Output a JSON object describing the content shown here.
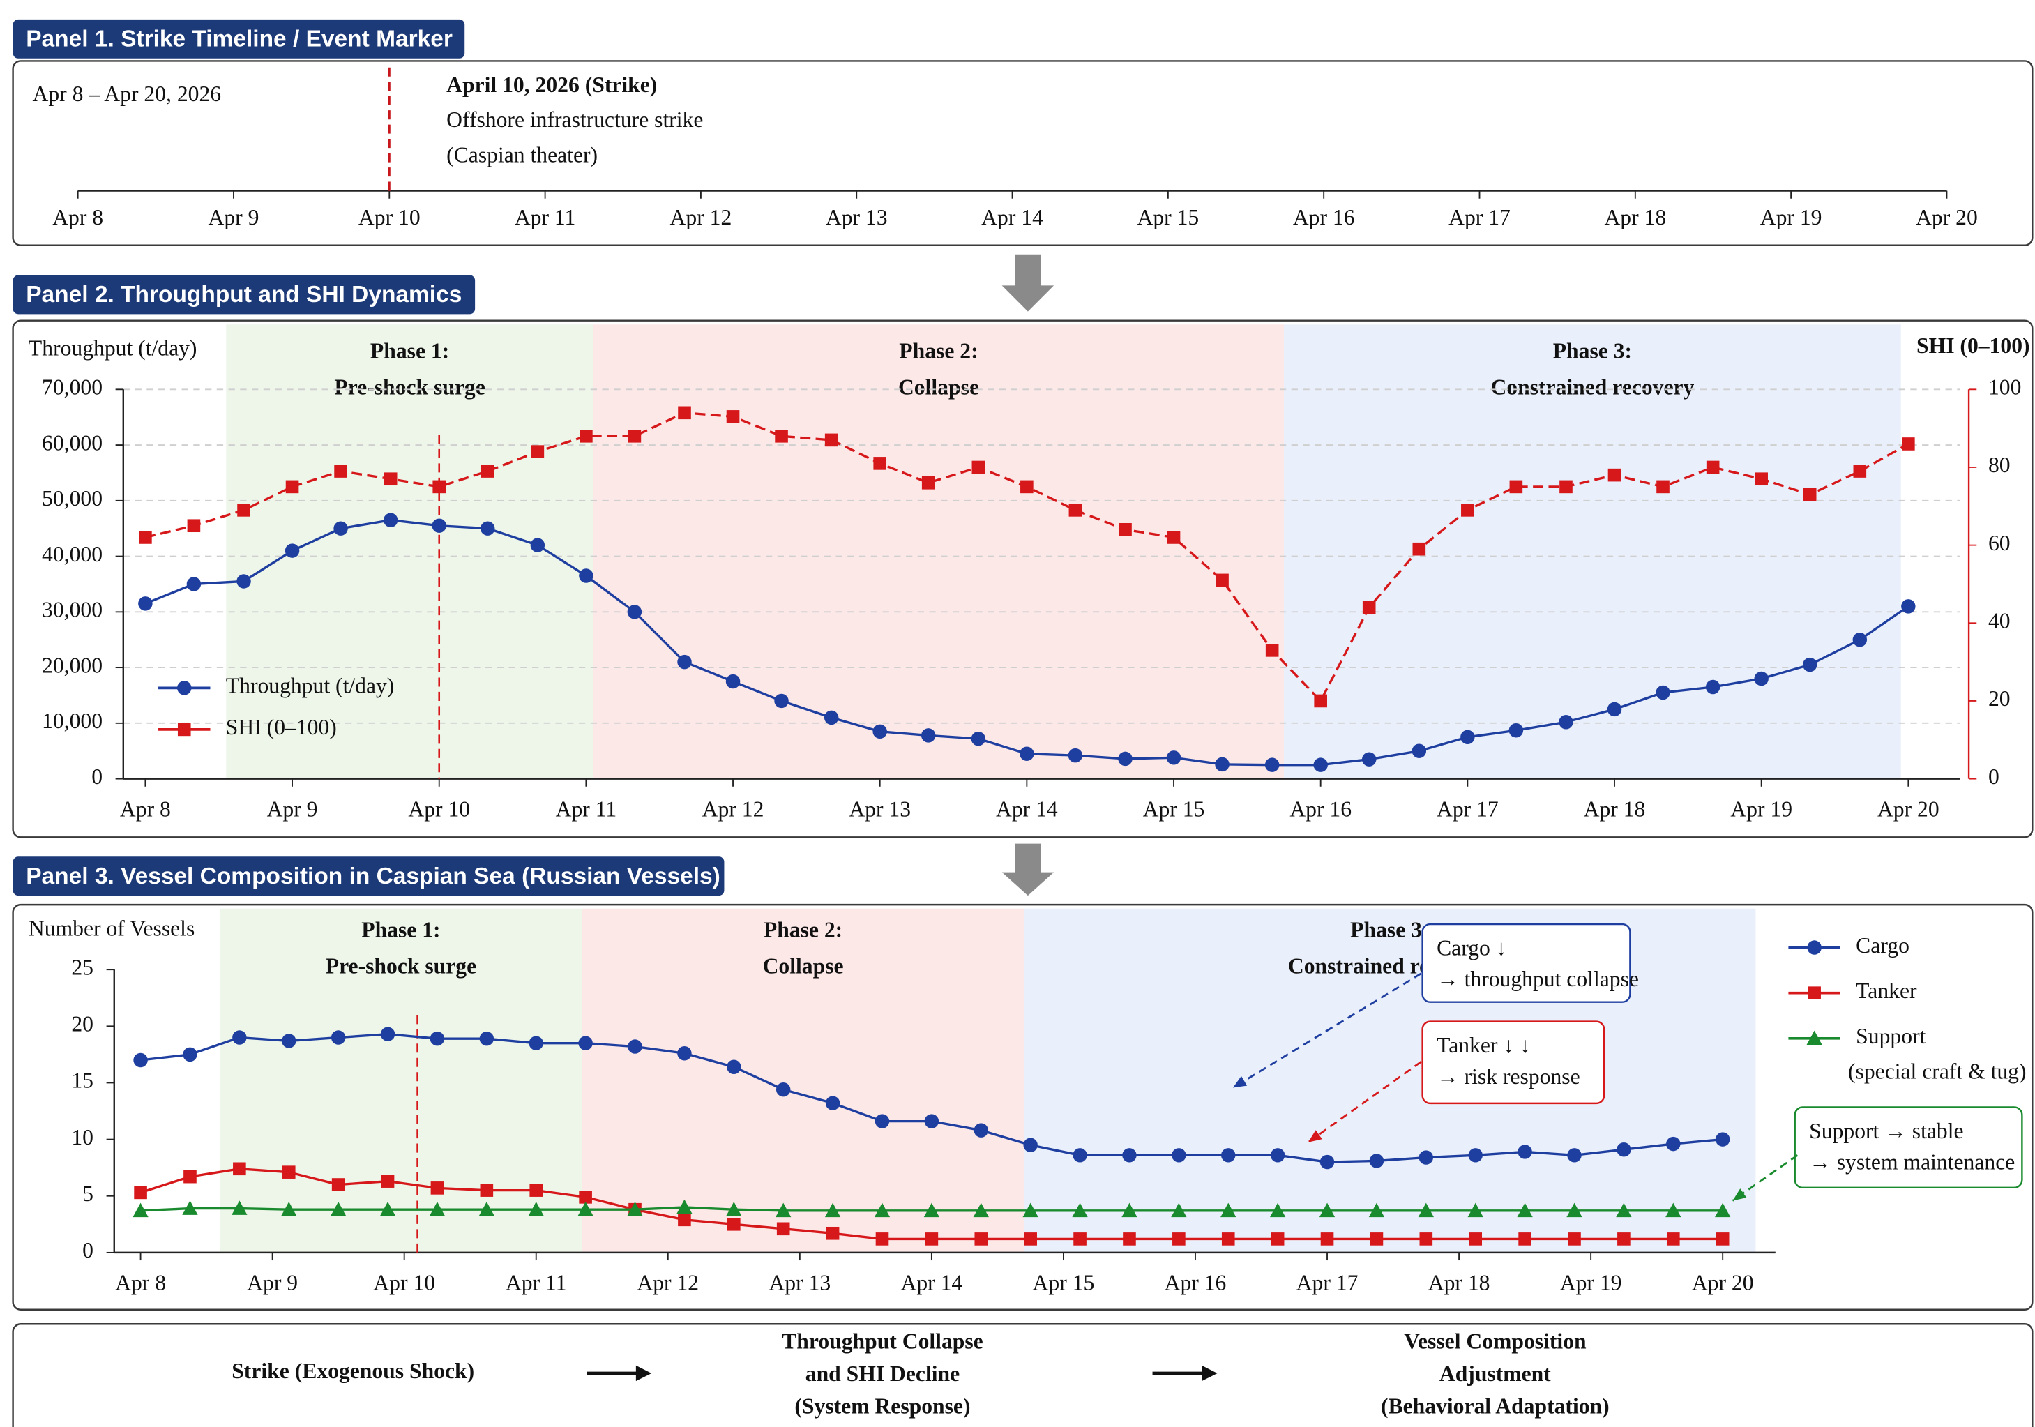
{
  "chart_data": [
    {
      "type": "timeline",
      "title": "Panel 1. Strike Timeline / Event Marker",
      "range_label": "Apr 8 – Apr 20, 2026",
      "event": {
        "x": 2,
        "title": "April 10, 2026 (Strike)",
        "lines": [
          "Offshore infrastructure strike",
          "(Caspian theater)"
        ],
        "color": "#c8161d"
      },
      "xlim": [
        0,
        12
      ],
      "xticks": [
        {
          "value": 0,
          "label": "Apr 8"
        },
        {
          "value": 1,
          "label": "Apr 9"
        },
        {
          "value": 2,
          "label": "Apr 10"
        },
        {
          "value": 3,
          "label": "Apr 11"
        },
        {
          "value": 4,
          "label": "Apr 12"
        },
        {
          "value": 5,
          "label": "Apr 13"
        },
        {
          "value": 6,
          "label": "Apr 14"
        },
        {
          "value": 7,
          "label": "Apr 15"
        },
        {
          "value": 8,
          "label": "Apr 16"
        },
        {
          "value": 9,
          "label": "Apr 17"
        },
        {
          "value": 10,
          "label": "Apr 18"
        },
        {
          "value": 11,
          "label": "Apr 19"
        },
        {
          "value": 12,
          "label": "Apr 20"
        }
      ]
    },
    {
      "type": "line",
      "title": "Panel 2. Throughput and SHI Dynamics",
      "ylabel": "Throughput (t/day)",
      "y2label": "SHI (0–100)",
      "legend": "lower left",
      "grid": true,
      "event_x": 2,
      "event_color": "#d6181b",
      "phases": [
        {
          "label": [
            "Phase 1:",
            "Pre-shock surge"
          ],
          "start": 0.55,
          "end": 3.05,
          "color": "#1c7a22",
          "fill": "#eef6ea"
        },
        {
          "label": [
            "Phase 2:",
            "Collapse"
          ],
          "start": 3.05,
          "end": 7.75,
          "color": "#d6181b",
          "fill": "#fde8e8"
        },
        {
          "label": [
            "Phase 3:",
            "Constrained recovery"
          ],
          "start": 7.75,
          "end": 11.95,
          "color": "#1f3a8f",
          "fill": "#eaf0fb"
        }
      ],
      "x": [
        0,
        0.33,
        0.67,
        1,
        1.33,
        1.67,
        2,
        2.33,
        2.67,
        3,
        3.33,
        3.67,
        4,
        4.33,
        4.67,
        5,
        5.33,
        5.67,
        6,
        6.33,
        6.67,
        7,
        7.33,
        7.67,
        8,
        8.33,
        8.67,
        9,
        9.33,
        9.67,
        10,
        10.33,
        10.67,
        11,
        11.33,
        11.67,
        12
      ],
      "series": [
        {
          "name": "Throughput (t/day)",
          "color": "#1f3fa0",
          "marker": "circle",
          "values": [
            31500,
            35000,
            35500,
            41000,
            45000,
            46500,
            45500,
            45000,
            42000,
            36500,
            30000,
            21000,
            17500,
            14000,
            11000,
            8500,
            7800,
            7200,
            4500,
            4200,
            3600,
            3800,
            2600,
            2500,
            2500,
            3500,
            5000,
            7500,
            8700,
            10200,
            12500,
            15500,
            16500,
            18000,
            20500,
            25000,
            31000
          ]
        },
        {
          "name": "SHI (0–100)",
          "color": "#d6181b",
          "marker": "square",
          "axis": "y2",
          "dashed": true,
          "values": [
            62,
            65,
            69,
            75,
            79,
            77,
            75,
            79,
            84,
            88,
            88,
            94,
            93,
            88,
            87,
            81,
            76,
            80,
            75,
            69,
            64,
            62,
            51,
            33,
            20,
            44,
            59,
            69,
            75,
            75,
            78,
            75,
            80,
            77,
            73,
            79,
            86
          ]
        }
      ],
      "xlim": [
        -0.15,
        12.35
      ],
      "xticks": [
        {
          "value": 0,
          "label": "Apr 8"
        },
        {
          "value": 1,
          "label": "Apr 9"
        },
        {
          "value": 2,
          "label": "Apr 10"
        },
        {
          "value": 3,
          "label": "Apr 11"
        },
        {
          "value": 4,
          "label": "Apr 12"
        },
        {
          "value": 5,
          "label": "Apr 13"
        },
        {
          "value": 6,
          "label": "Apr 14"
        },
        {
          "value": 7,
          "label": "Apr 15"
        },
        {
          "value": 8,
          "label": "Apr 16"
        },
        {
          "value": 9,
          "label": "Apr 17"
        },
        {
          "value": 10,
          "label": "Apr 18"
        },
        {
          "value": 11,
          "label": "Apr 19"
        },
        {
          "value": 12,
          "label": "Apr 20"
        }
      ],
      "ylim": [
        0,
        70000
      ],
      "yticks": [
        0,
        {
          "value": 10000,
          "label": "10,000"
        },
        {
          "value": 20000,
          "label": "20,000"
        },
        {
          "value": 30000,
          "label": "30,000"
        },
        {
          "value": 40000,
          "label": "40,000"
        },
        {
          "value": 50000,
          "label": "50,000"
        },
        {
          "value": 60000,
          "label": "60,000"
        },
        {
          "value": 70000,
          "label": "70,000"
        }
      ],
      "y2lim": [
        0,
        100
      ],
      "y2ticks": [
        0,
        20,
        40,
        60,
        80,
        100
      ],
      "y2color": "#d6181b",
      "ylabelcolor": "#1f3fa0"
    },
    {
      "type": "line",
      "title": "Panel 3. Vessel Composition in Caspian Sea (Russian Vessels)",
      "ylabel": "Number of Vessels",
      "legend": "right",
      "grid": false,
      "event_x": 2.1,
      "event_color": "#d6181b",
      "phases": [
        {
          "label": [
            "Phase 1:",
            "Pre-shock surge"
          ],
          "start": 0.6,
          "end": 3.35,
          "color": "#1c7a22",
          "fill": "#eef6ea"
        },
        {
          "label": [
            "Phase 2:",
            "Collapse"
          ],
          "start": 3.35,
          "end": 6.7,
          "color": "#d6181b",
          "fill": "#fde8e8"
        },
        {
          "label": [
            "Phase 3:",
            "Constrained recovery"
          ],
          "start": 6.7,
          "end": 12.25,
          "color": "#1f3a8f",
          "fill": "#eaf0fb"
        }
      ],
      "x": [
        0,
        0.375,
        0.75,
        1.125,
        1.5,
        1.875,
        2.25,
        2.625,
        3,
        3.375,
        3.75,
        4.125,
        4.5,
        4.875,
        5.25,
        5.625,
        6,
        6.375,
        6.75,
        7.125,
        7.5,
        7.875,
        8.25,
        8.625,
        9,
        9.375,
        9.75,
        10.125,
        10.5,
        10.875,
        11.25,
        11.625,
        12
      ],
      "series": [
        {
          "name": "Cargo",
          "color": "#1f3fa0",
          "marker": "circle",
          "values": [
            17,
            17.5,
            19,
            18.7,
            19,
            19.3,
            18.9,
            18.9,
            18.5,
            18.5,
            18.2,
            17.6,
            16.4,
            14.4,
            13.2,
            11.6,
            11.6,
            10.8,
            9.5,
            8.6,
            8.6,
            8.6,
            8.6,
            8.6,
            8,
            8.1,
            8.4,
            8.6,
            8.9,
            8.6,
            9.1,
            9.6,
            10
          ]
        },
        {
          "name": "Tanker",
          "color": "#d6181b",
          "marker": "square",
          "values": [
            5.3,
            6.7,
            7.4,
            7.1,
            6,
            6.3,
            5.7,
            5.5,
            5.5,
            4.9,
            3.8,
            2.9,
            2.5,
            2.1,
            1.7,
            1.2,
            1.2,
            1.2,
            1.2,
            1.2,
            1.2,
            1.2,
            1.2,
            1.2,
            1.2,
            1.2,
            1.2,
            1.2,
            1.2,
            1.2,
            1.2,
            1.2,
            1.2
          ]
        },
        {
          "name": "Support",
          "note": "(special craft & tug)",
          "color": "#1a8a2e",
          "marker": "triangle",
          "values": [
            3.7,
            3.9,
            3.9,
            3.8,
            3.8,
            3.8,
            3.8,
            3.8,
            3.8,
            3.8,
            3.8,
            4,
            3.8,
            3.7,
            3.7,
            3.7,
            3.7,
            3.7,
            3.7,
            3.7,
            3.7,
            3.7,
            3.7,
            3.7,
            3.7,
            3.7,
            3.7,
            3.7,
            3.7,
            3.7,
            3.7,
            3.7,
            3.7
          ]
        }
      ],
      "annotations": [
        {
          "lines": [
            "Cargo ↓",
            "→ throughput collapse"
          ],
          "color": "#1f3fa0"
        },
        {
          "lines": [
            "Tanker ↓ ↓",
            "→ risk response"
          ],
          "color": "#d6181b"
        },
        {
          "lines": [
            "Support → stable",
            "→ system maintenance"
          ],
          "color": "#1a8a2e"
        }
      ],
      "xlim": [
        -0.2,
        12.4
      ],
      "xticks": [
        {
          "value": 0,
          "label": "Apr 8"
        },
        {
          "value": 1,
          "label": "Apr 9"
        },
        {
          "value": 2,
          "label": "Apr 10"
        },
        {
          "value": 3,
          "label": "Apr 11"
        },
        {
          "value": 4,
          "label": "Apr 12"
        },
        {
          "value": 5,
          "label": "Apr 13"
        },
        {
          "value": 6,
          "label": "Apr 14"
        },
        {
          "value": 7,
          "label": "Apr 15"
        },
        {
          "value": 8,
          "label": "Apr 16"
        },
        {
          "value": 9,
          "label": "Apr 17"
        },
        {
          "value": 10,
          "label": "Apr 18"
        },
        {
          "value": 11,
          "label": "Apr 19"
        },
        {
          "value": 12,
          "label": "Apr 20"
        }
      ],
      "ylim": [
        0,
        25
      ],
      "yticks": [
        0,
        5,
        10,
        15,
        20,
        25
      ],
      "ylabelcolor": "#111111"
    }
  ],
  "flow": {
    "steps": [
      [
        "Strike (Exogenous Shock)"
      ],
      [
        "Throughput Collapse",
        "and SHI Decline",
        "(System Response)"
      ],
      [
        "Vessel Composition",
        "Adjustment",
        "(Behavioral Adaptation)"
      ]
    ]
  }
}
